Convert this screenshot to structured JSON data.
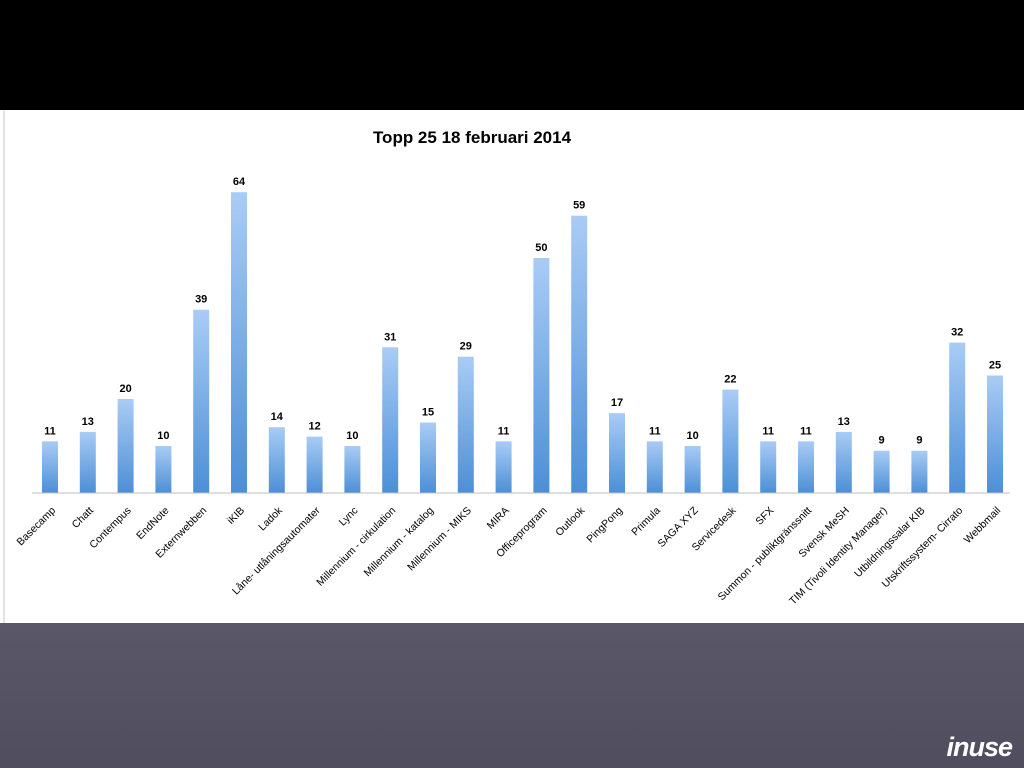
{
  "brand": {
    "logo_text": "inuse",
    "accent_color": "#f08a1a"
  },
  "chart_data": {
    "type": "bar",
    "title": "Topp 25 18 februari 2014",
    "xlabel": "",
    "ylabel": "",
    "ylim": [
      0,
      70
    ],
    "grid": false,
    "legend": "none",
    "bar_color": "#5b9bd5",
    "bar_gradient_top": "#a9ccf5",
    "bar_gradient_bottom": "#4c8fd6",
    "categories": [
      "Basecamp",
      "Chatt",
      "Contempus",
      "EndNote",
      "Externwebben",
      "iKIB",
      "Ladok",
      "Låne- utlåningsautomater",
      "Lync",
      "Millennium - cirkulation",
      "Millennium - katalog",
      "Millennium - MIKS",
      "MIRA",
      "Officeprogram",
      "Outlook",
      "PingPong",
      "Primula",
      "SAGA XYZ",
      "Servicedesk",
      "SFX",
      "Summon - publiktgränssnitt",
      "Svensk MeSH",
      "TIM (Tivoli Identity Manager)",
      "Utbildningssalar KIB",
      "Utskriftssystem- Cirrato",
      "Webbmail"
    ],
    "values": [
      11,
      13,
      20,
      10,
      39,
      64,
      14,
      12,
      10,
      31,
      15,
      29,
      11,
      50,
      59,
      17,
      11,
      10,
      22,
      11,
      11,
      13,
      9,
      9,
      32,
      25
    ]
  }
}
